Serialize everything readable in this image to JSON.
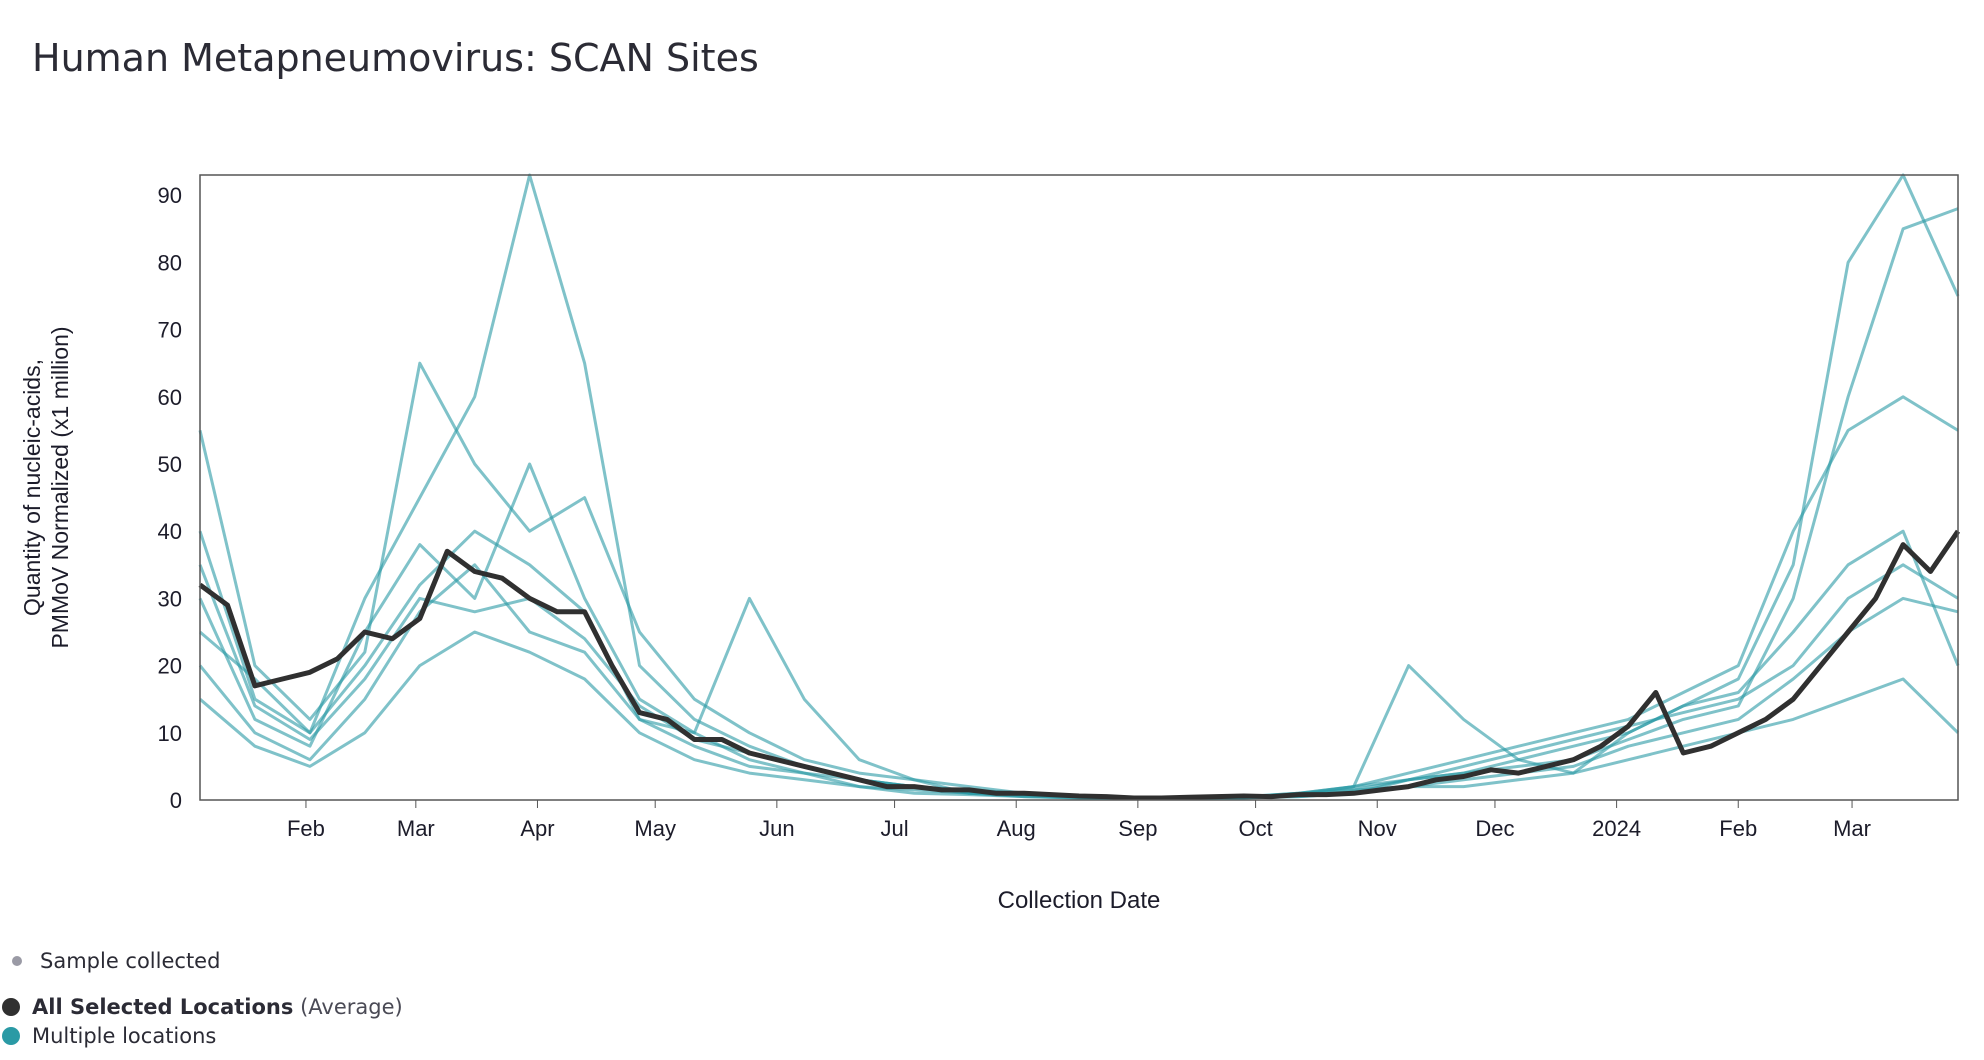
{
  "title": "Human Metapneumovirus: SCAN Sites",
  "colors": {
    "average": "#303030",
    "locations": "#2a9aa5",
    "sample_dot": "#9a9aa5",
    "frame": "#555555"
  },
  "legend": {
    "sample_collected": "Sample collected",
    "average_bold": "All Selected Locations",
    "average_suffix": "(Average)",
    "multiple": "Multiple locations"
  },
  "chart_data": {
    "type": "line",
    "title": "Human Metapneumovirus: SCAN Sites",
    "xlabel": "Collection Date",
    "ylabel_lines": [
      "Quantity of nucleic-acids,",
      "PMMoV Normalized (x1 million)"
    ],
    "ylim": [
      0,
      93
    ],
    "y_ticks": [
      0,
      10,
      20,
      30,
      40,
      50,
      60,
      70,
      80,
      90
    ],
    "xlim": [
      "2023-01-05",
      "2024-03-28"
    ],
    "x_ticks": [
      {
        "date": "2023-02-01",
        "label": "Feb"
      },
      {
        "date": "2023-03-01",
        "label": "Mar"
      },
      {
        "date": "2023-04-01",
        "label": "Apr"
      },
      {
        "date": "2023-05-01",
        "label": "May"
      },
      {
        "date": "2023-06-01",
        "label": "Jun"
      },
      {
        "date": "2023-07-01",
        "label": "Jul"
      },
      {
        "date": "2023-08-01",
        "label": "Aug"
      },
      {
        "date": "2023-09-01",
        "label": "Sep"
      },
      {
        "date": "2023-10-01",
        "label": "Oct"
      },
      {
        "date": "2023-11-01",
        "label": "Nov"
      },
      {
        "date": "2023-12-01",
        "label": "Dec"
      },
      {
        "date": "2024-01-01",
        "label": "2024"
      },
      {
        "date": "2024-02-01",
        "label": "Feb"
      },
      {
        "date": "2024-03-01",
        "label": "Mar"
      }
    ],
    "grid": false,
    "average_series": {
      "x": [
        "2023-01-05",
        "2023-01-12",
        "2023-01-19",
        "2023-01-26",
        "2023-02-02",
        "2023-02-09",
        "2023-02-16",
        "2023-02-23",
        "2023-03-02",
        "2023-03-09",
        "2023-03-16",
        "2023-03-23",
        "2023-03-30",
        "2023-04-06",
        "2023-04-13",
        "2023-04-20",
        "2023-04-27",
        "2023-05-04",
        "2023-05-11",
        "2023-05-18",
        "2023-05-25",
        "2023-06-01",
        "2023-06-08",
        "2023-06-15",
        "2023-06-22",
        "2023-06-29",
        "2023-07-06",
        "2023-07-13",
        "2023-07-20",
        "2023-07-27",
        "2023-08-03",
        "2023-08-10",
        "2023-08-17",
        "2023-08-24",
        "2023-08-31",
        "2023-09-07",
        "2023-09-14",
        "2023-09-21",
        "2023-09-28",
        "2023-10-05",
        "2023-10-12",
        "2023-10-19",
        "2023-10-26",
        "2023-11-02",
        "2023-11-09",
        "2023-11-16",
        "2023-11-23",
        "2023-11-30",
        "2023-12-07",
        "2023-12-14",
        "2023-12-21",
        "2023-12-28",
        "2024-01-04",
        "2024-01-11",
        "2024-01-18",
        "2024-01-25",
        "2024-02-01",
        "2024-02-08",
        "2024-02-15",
        "2024-02-22",
        "2024-02-29",
        "2024-03-07",
        "2024-03-14",
        "2024-03-21",
        "2024-03-28"
      ],
      "y": [
        32,
        29,
        17,
        18,
        19,
        21,
        25,
        24,
        27,
        37,
        34,
        33,
        30,
        28,
        28,
        20,
        13,
        12,
        9,
        9,
        7,
        6,
        5,
        4,
        3,
        2,
        2,
        1.5,
        1.5,
        1,
        1,
        0.8,
        0.6,
        0.5,
        0.3,
        0.3,
        0.4,
        0.5,
        0.6,
        0.5,
        0.8,
        0.8,
        1,
        1.5,
        2,
        3,
        3.5,
        4.5,
        4,
        5,
        6,
        8,
        11,
        16,
        7,
        8,
        10,
        12,
        15,
        20,
        25,
        30,
        38,
        34,
        40
      ]
    },
    "location_series": {
      "x": [
        "2023-01-05",
        "2023-01-19",
        "2023-02-02",
        "2023-02-16",
        "2023-03-02",
        "2023-03-16",
        "2023-03-30",
        "2023-04-13",
        "2023-04-27",
        "2023-05-11",
        "2023-05-25",
        "2023-06-08",
        "2023-06-22",
        "2023-07-06",
        "2023-07-20",
        "2023-08-03",
        "2023-08-17",
        "2023-08-31",
        "2023-09-14",
        "2023-09-28",
        "2023-10-12",
        "2023-10-26",
        "2023-11-09",
        "2023-11-23",
        "2023-12-07",
        "2023-12-21",
        "2024-01-04",
        "2024-01-18",
        "2024-02-01",
        "2024-02-15",
        "2024-02-29",
        "2024-03-14",
        "2024-03-28"
      ],
      "values": [
        [
          55,
          20,
          12,
          22,
          65,
          50,
          40,
          45,
          25,
          15,
          10,
          6,
          4,
          3,
          1,
          1,
          0.5,
          0.3,
          0.2,
          0.5,
          0.5,
          1,
          3,
          4,
          5,
          6,
          9,
          12,
          14,
          30,
          60,
          85,
          88
        ],
        [
          40,
          15,
          10,
          30,
          45,
          60,
          93,
          65,
          20,
          12,
          8,
          5,
          3,
          2,
          1.5,
          1,
          0.5,
          0.2,
          0.3,
          0.5,
          1,
          2,
          3,
          4,
          6,
          8,
          10,
          14,
          18,
          35,
          80,
          93,
          75
        ],
        [
          30,
          12,
          8,
          25,
          38,
          30,
          50,
          30,
          15,
          10,
          6,
          4,
          3,
          2,
          1,
          0.5,
          0.3,
          0.2,
          0.2,
          0.5,
          1,
          2,
          4,
          6,
          8,
          10,
          12,
          16,
          20,
          40,
          55,
          60,
          55
        ],
        [
          25,
          18,
          10,
          20,
          32,
          40,
          35,
          28,
          12,
          8,
          5,
          4,
          2,
          1.5,
          1,
          0.6,
          0.4,
          0.2,
          0.3,
          0.4,
          1,
          1.5,
          2,
          3,
          4,
          5,
          8,
          10,
          12,
          18,
          25,
          30,
          28
        ],
        [
          20,
          10,
          6,
          15,
          28,
          35,
          25,
          22,
          12,
          10,
          30,
          15,
          6,
          3,
          2,
          1,
          0.5,
          0.3,
          0.2,
          0.3,
          0.8,
          2,
          20,
          12,
          6,
          4,
          10,
          14,
          16,
          25,
          35,
          40,
          20
        ],
        [
          15,
          8,
          5,
          10,
          20,
          25,
          22,
          18,
          10,
          6,
          4,
          3,
          2,
          1,
          0.8,
          0.5,
          0.3,
          0.2,
          0.2,
          0.3,
          0.5,
          1,
          2,
          2,
          3,
          4,
          6,
          8,
          10,
          12,
          15,
          18,
          10
        ],
        [
          35,
          14,
          9,
          18,
          30,
          28,
          30,
          24,
          14,
          9,
          7,
          5,
          3,
          2,
          1.2,
          0.8,
          0.4,
          0.2,
          0.3,
          0.4,
          0.8,
          1.5,
          3,
          5,
          7,
          9,
          11,
          13,
          15,
          20,
          30,
          35,
          30
        ]
      ]
    }
  }
}
